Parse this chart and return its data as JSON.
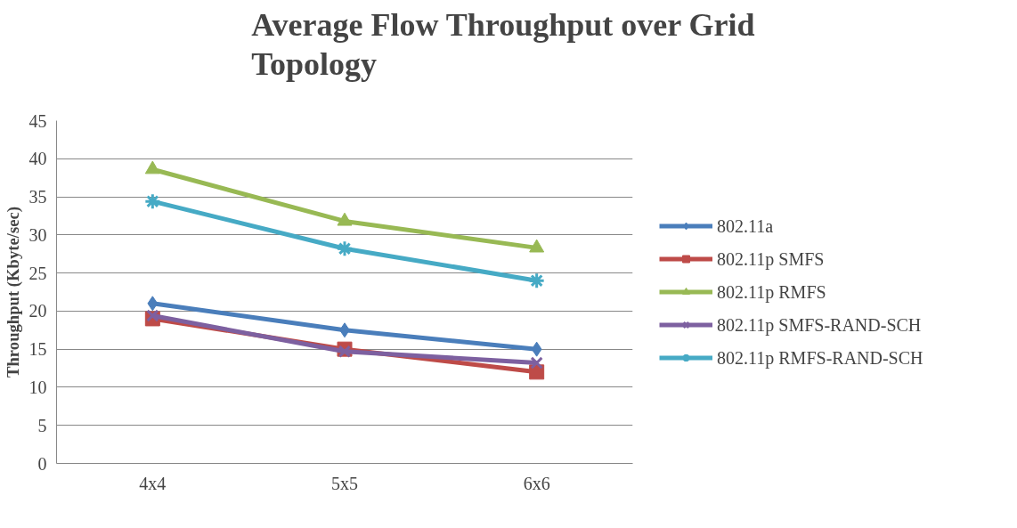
{
  "chart_data": {
    "type": "line",
    "title": "Average Flow Throughput over Grid Topology",
    "ylabel": "Throughput (Kbyte/sec)",
    "categories": [
      "4x4",
      "5x5",
      "6x6"
    ],
    "ylim": [
      0,
      45
    ],
    "yticks": [
      0,
      5,
      10,
      15,
      20,
      25,
      30,
      35,
      40,
      45
    ],
    "grid": "y",
    "legend": "right",
    "line_style": "solid",
    "series": [
      {
        "name": "802.11a",
        "color": "#4a7ebb",
        "marker": "diamond",
        "values": [
          21,
          17.5,
          15
        ]
      },
      {
        "name": "802.11p SMFS",
        "color": "#be4b48",
        "marker": "square",
        "values": [
          19,
          15,
          12
        ]
      },
      {
        "name": "802.11p RMFS",
        "color": "#98b954",
        "marker": "triangle",
        "values": [
          38.6,
          31.8,
          28.3
        ]
      },
      {
        "name": "802.11p SMFS-RAND-SCH",
        "color": "#7d60a0",
        "marker": "x",
        "values": [
          19.4,
          14.7,
          13.2
        ]
      },
      {
        "name": "802.11p RMFS-RAND-SCH",
        "color": "#46aac5",
        "marker": "cross",
        "values": [
          34.4,
          28.2,
          24
        ]
      }
    ]
  }
}
